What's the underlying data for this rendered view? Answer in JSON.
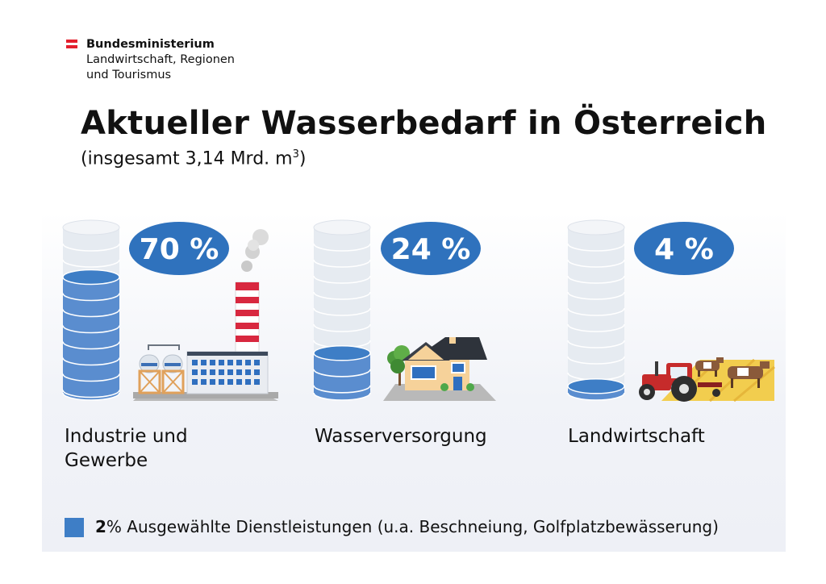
{
  "ministry": {
    "line1": "Bundesministerium",
    "line2": "Landwirtschaft, Regionen",
    "line3": "und Tourismus",
    "flag_colors": [
      "#e4202e",
      "#ffffff",
      "#e4202e"
    ]
  },
  "chart_data": {
    "type": "bar",
    "title": "Aktueller Wasserbedarf in Österreich",
    "subtitle": "(insgesamt 3,14 Mrd. m",
    "subtitle_sup": "3",
    "subtitle_close": ")",
    "categories": [
      "Industrie und Gewerbe",
      "Wasserversorgung",
      "Landwirtschaft"
    ],
    "values": [
      70,
      24,
      4
    ],
    "value_labels": [
      "70 %",
      "24 %",
      "4 %"
    ],
    "unit": "%",
    "ylim": [
      0,
      100
    ],
    "legend": {
      "value_label": "2",
      "value_suffix": "%",
      "text": "Ausgewählte Dienstleistungen (u.a. Beschneiung, Golfplatzbewässerung)"
    },
    "colors": {
      "fill": "#5a8dcf",
      "fill_dark": "#3e7ec6",
      "empty": "#e6ebf1",
      "badge": "#2f72bd"
    },
    "icons": [
      "factory-icon",
      "house-icon",
      "tractor-icon"
    ]
  }
}
